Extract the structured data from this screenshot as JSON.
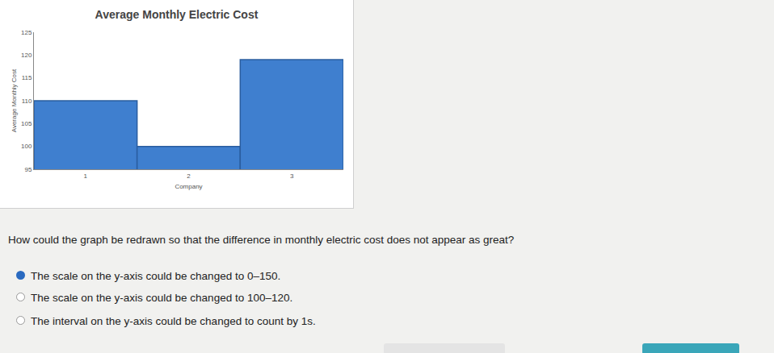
{
  "chart_data": {
    "type": "bar",
    "title": "Average Monthly Electric Cost",
    "x_label": "Company",
    "y_label": "Average Monthly Cost",
    "categories": [
      "1",
      "2",
      "3"
    ],
    "values": [
      110,
      100,
      119
    ],
    "color": "#3f7fcf",
    "ylim": [
      95,
      125
    ],
    "yticks": [
      95,
      100,
      105,
      110,
      115,
      120,
      125
    ],
    "grid": false
  },
  "question": "How could the graph be redrawn so that the difference in monthly electric cost does not appear as great?",
  "options": [
    "The scale on the y-axis could be changed to 0–150.",
    "The scale on the y-axis could be changed to 100–120.",
    "The interval on the y-axis could be changed to count by 1s."
  ],
  "selected": 0
}
